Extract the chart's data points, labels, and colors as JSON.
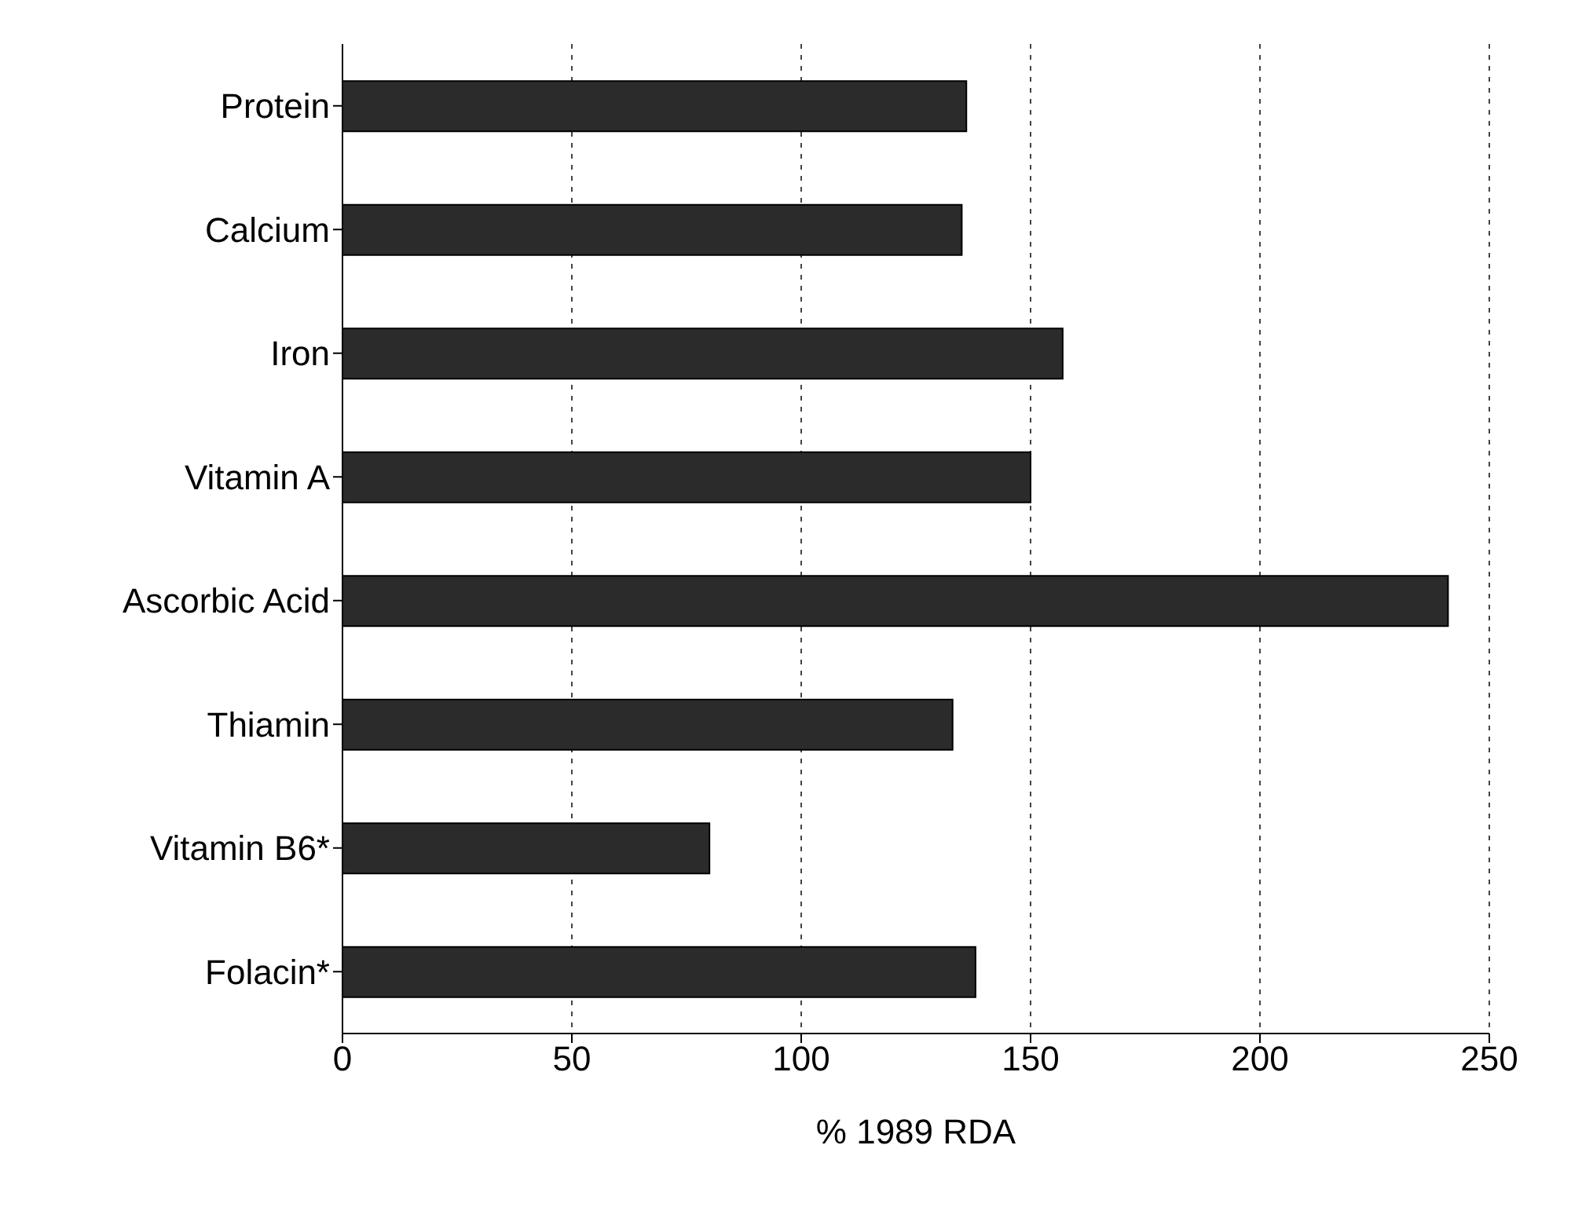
{
  "chart_data": {
    "type": "bar",
    "orientation": "horizontal",
    "xlabel": "% 1989 RDA",
    "categories": [
      "Protein",
      "Calcium",
      "Iron",
      "Vitamin A",
      "Ascorbic Acid",
      "Thiamin",
      "Vitamin B6*",
      "Folacin*"
    ],
    "values": [
      136,
      135,
      157,
      150,
      241,
      133,
      80,
      138
    ],
    "color": "#2b2b2b",
    "xlim": [
      0,
      250
    ],
    "xticks": [
      0,
      50,
      100,
      150,
      200,
      250
    ],
    "grid": "x",
    "legend": false
  }
}
